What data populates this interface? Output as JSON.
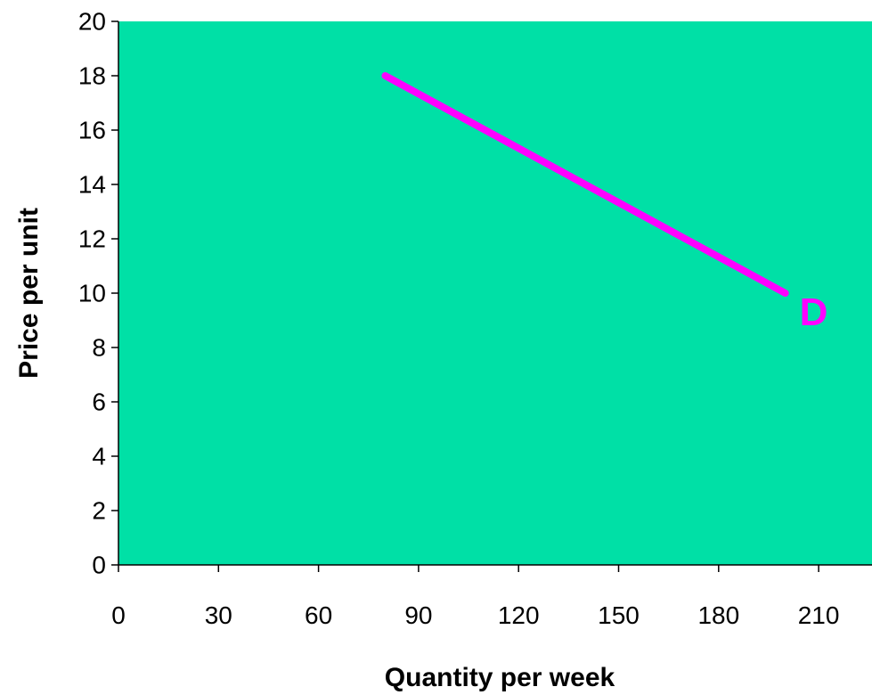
{
  "chart_data": {
    "type": "line",
    "title": "",
    "xlabel": "Quantity per week",
    "ylabel": "Price per unit",
    "xlim": [
      0,
      226
    ],
    "ylim": [
      0,
      20
    ],
    "x_ticks": [
      "0",
      "30",
      "60",
      "90",
      "120",
      "150",
      "180",
      "210"
    ],
    "y_ticks": [
      "0",
      "2",
      "4",
      "6",
      "8",
      "10",
      "12",
      "14",
      "16",
      "18",
      "20"
    ],
    "grid": false,
    "legend": "none",
    "series": [
      {
        "name": "D",
        "x": [
          80,
          200
        ],
        "y": [
          18,
          10
        ]
      }
    ],
    "colors": {
      "plot_background": "#00E0A6",
      "line": "#FF00FF",
      "axis": "#000000"
    }
  }
}
